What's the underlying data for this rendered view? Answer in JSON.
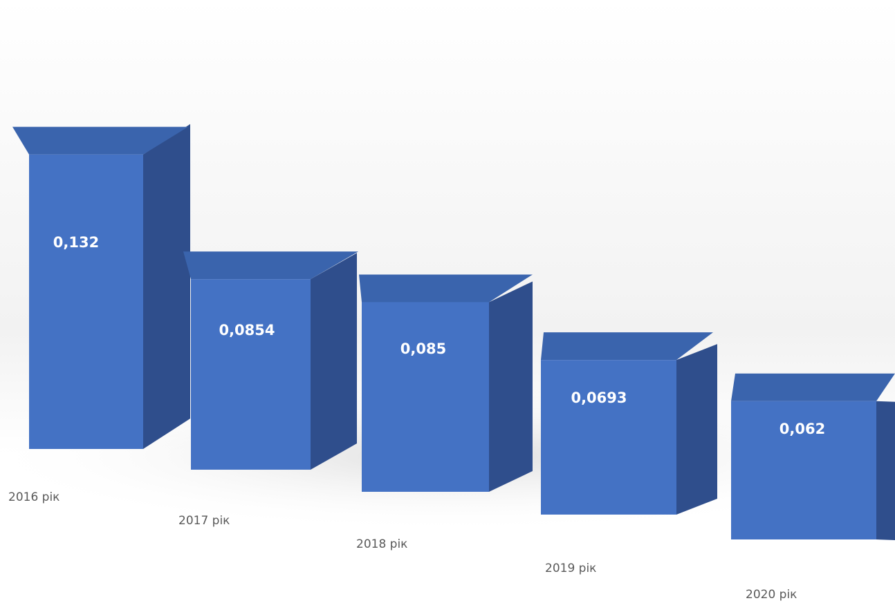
{
  "chart_data": {
    "type": "bar",
    "style": "3d-column",
    "categories": [
      "2016 рік",
      "2017 рік",
      "2018 рік",
      "2019 рік",
      "2020 рік"
    ],
    "values": [
      0.132,
      0.0854,
      0.085,
      0.0693,
      0.062
    ],
    "value_labels": [
      "0,132",
      "0,0854",
      "0,085",
      "0,0693",
      "0,062"
    ],
    "title": "",
    "xlabel": "",
    "ylabel": "",
    "ylim": [
      0,
      0.132
    ],
    "grid": false,
    "legend": "none",
    "colors": {
      "front": "#4472c4",
      "side": "#2f4e8c",
      "top": "#3a64ad"
    }
  }
}
